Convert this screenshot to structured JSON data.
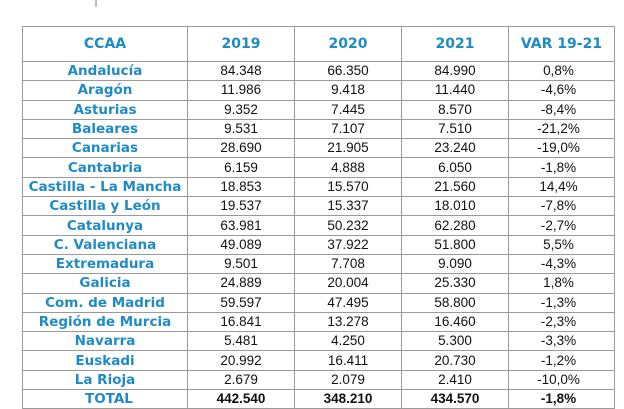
{
  "page_mark": "|",
  "table": {
    "headers": [
      "CCAA",
      "2019",
      "2020",
      "2021",
      "VAR 19-21"
    ],
    "rows": [
      [
        "Andalucía",
        "84.348",
        "66.350",
        "84.990",
        "0,8%"
      ],
      [
        "Aragón",
        "11.986",
        "9.418",
        "11.440",
        "-4,6%"
      ],
      [
        "Asturias",
        "9.352",
        "7.445",
        "8.570",
        "-8,4%"
      ],
      [
        "Baleares",
        "9.531",
        "7.107",
        "7.510",
        "-21,2%"
      ],
      [
        "Canarias",
        "28.690",
        "21.905",
        "23.240",
        "-19,0%"
      ],
      [
        "Cantabria",
        "6.159",
        "4.888",
        "6.050",
        "-1,8%"
      ],
      [
        "Castilla - La Mancha",
        "18.853",
        "15.570",
        "21.560",
        "14,4%"
      ],
      [
        "Castilla y León",
        "19.537",
        "15.337",
        "18.010",
        "-7,8%"
      ],
      [
        "Catalunya",
        "63.981",
        "50.232",
        "62.280",
        "-2,7%"
      ],
      [
        "C. Valenciana",
        "49.089",
        "37.922",
        "51.800",
        "5,5%"
      ],
      [
        "Extremadura",
        "9.501",
        "7.708",
        "9.090",
        "-4,3%"
      ],
      [
        "Galicia",
        "24.889",
        "20.004",
        "25.330",
        "1,8%"
      ],
      [
        "Com. de Madrid",
        "59.597",
        "47.495",
        "58.800",
        "-1,3%"
      ],
      [
        "Región de Murcia",
        "16.841",
        "13.278",
        "16.460",
        "-2,3%"
      ],
      [
        "Navarra",
        "5.481",
        "4.250",
        "5.300",
        "-3,3%"
      ],
      [
        "Euskadi",
        "20.992",
        "16.411",
        "20.730",
        "-1,2%"
      ],
      [
        "La Rioja",
        "2.679",
        "2.079",
        "2.410",
        "-10,0%"
      ]
    ],
    "total": [
      "TOTAL",
      "442.540",
      "348.210",
      "434.570",
      "-1,8%"
    ]
  },
  "colors": {
    "header_text": "#1f8bc6",
    "region_text": "#1f8bc6",
    "value_text": "#111111",
    "border": "#9a9a9a"
  }
}
